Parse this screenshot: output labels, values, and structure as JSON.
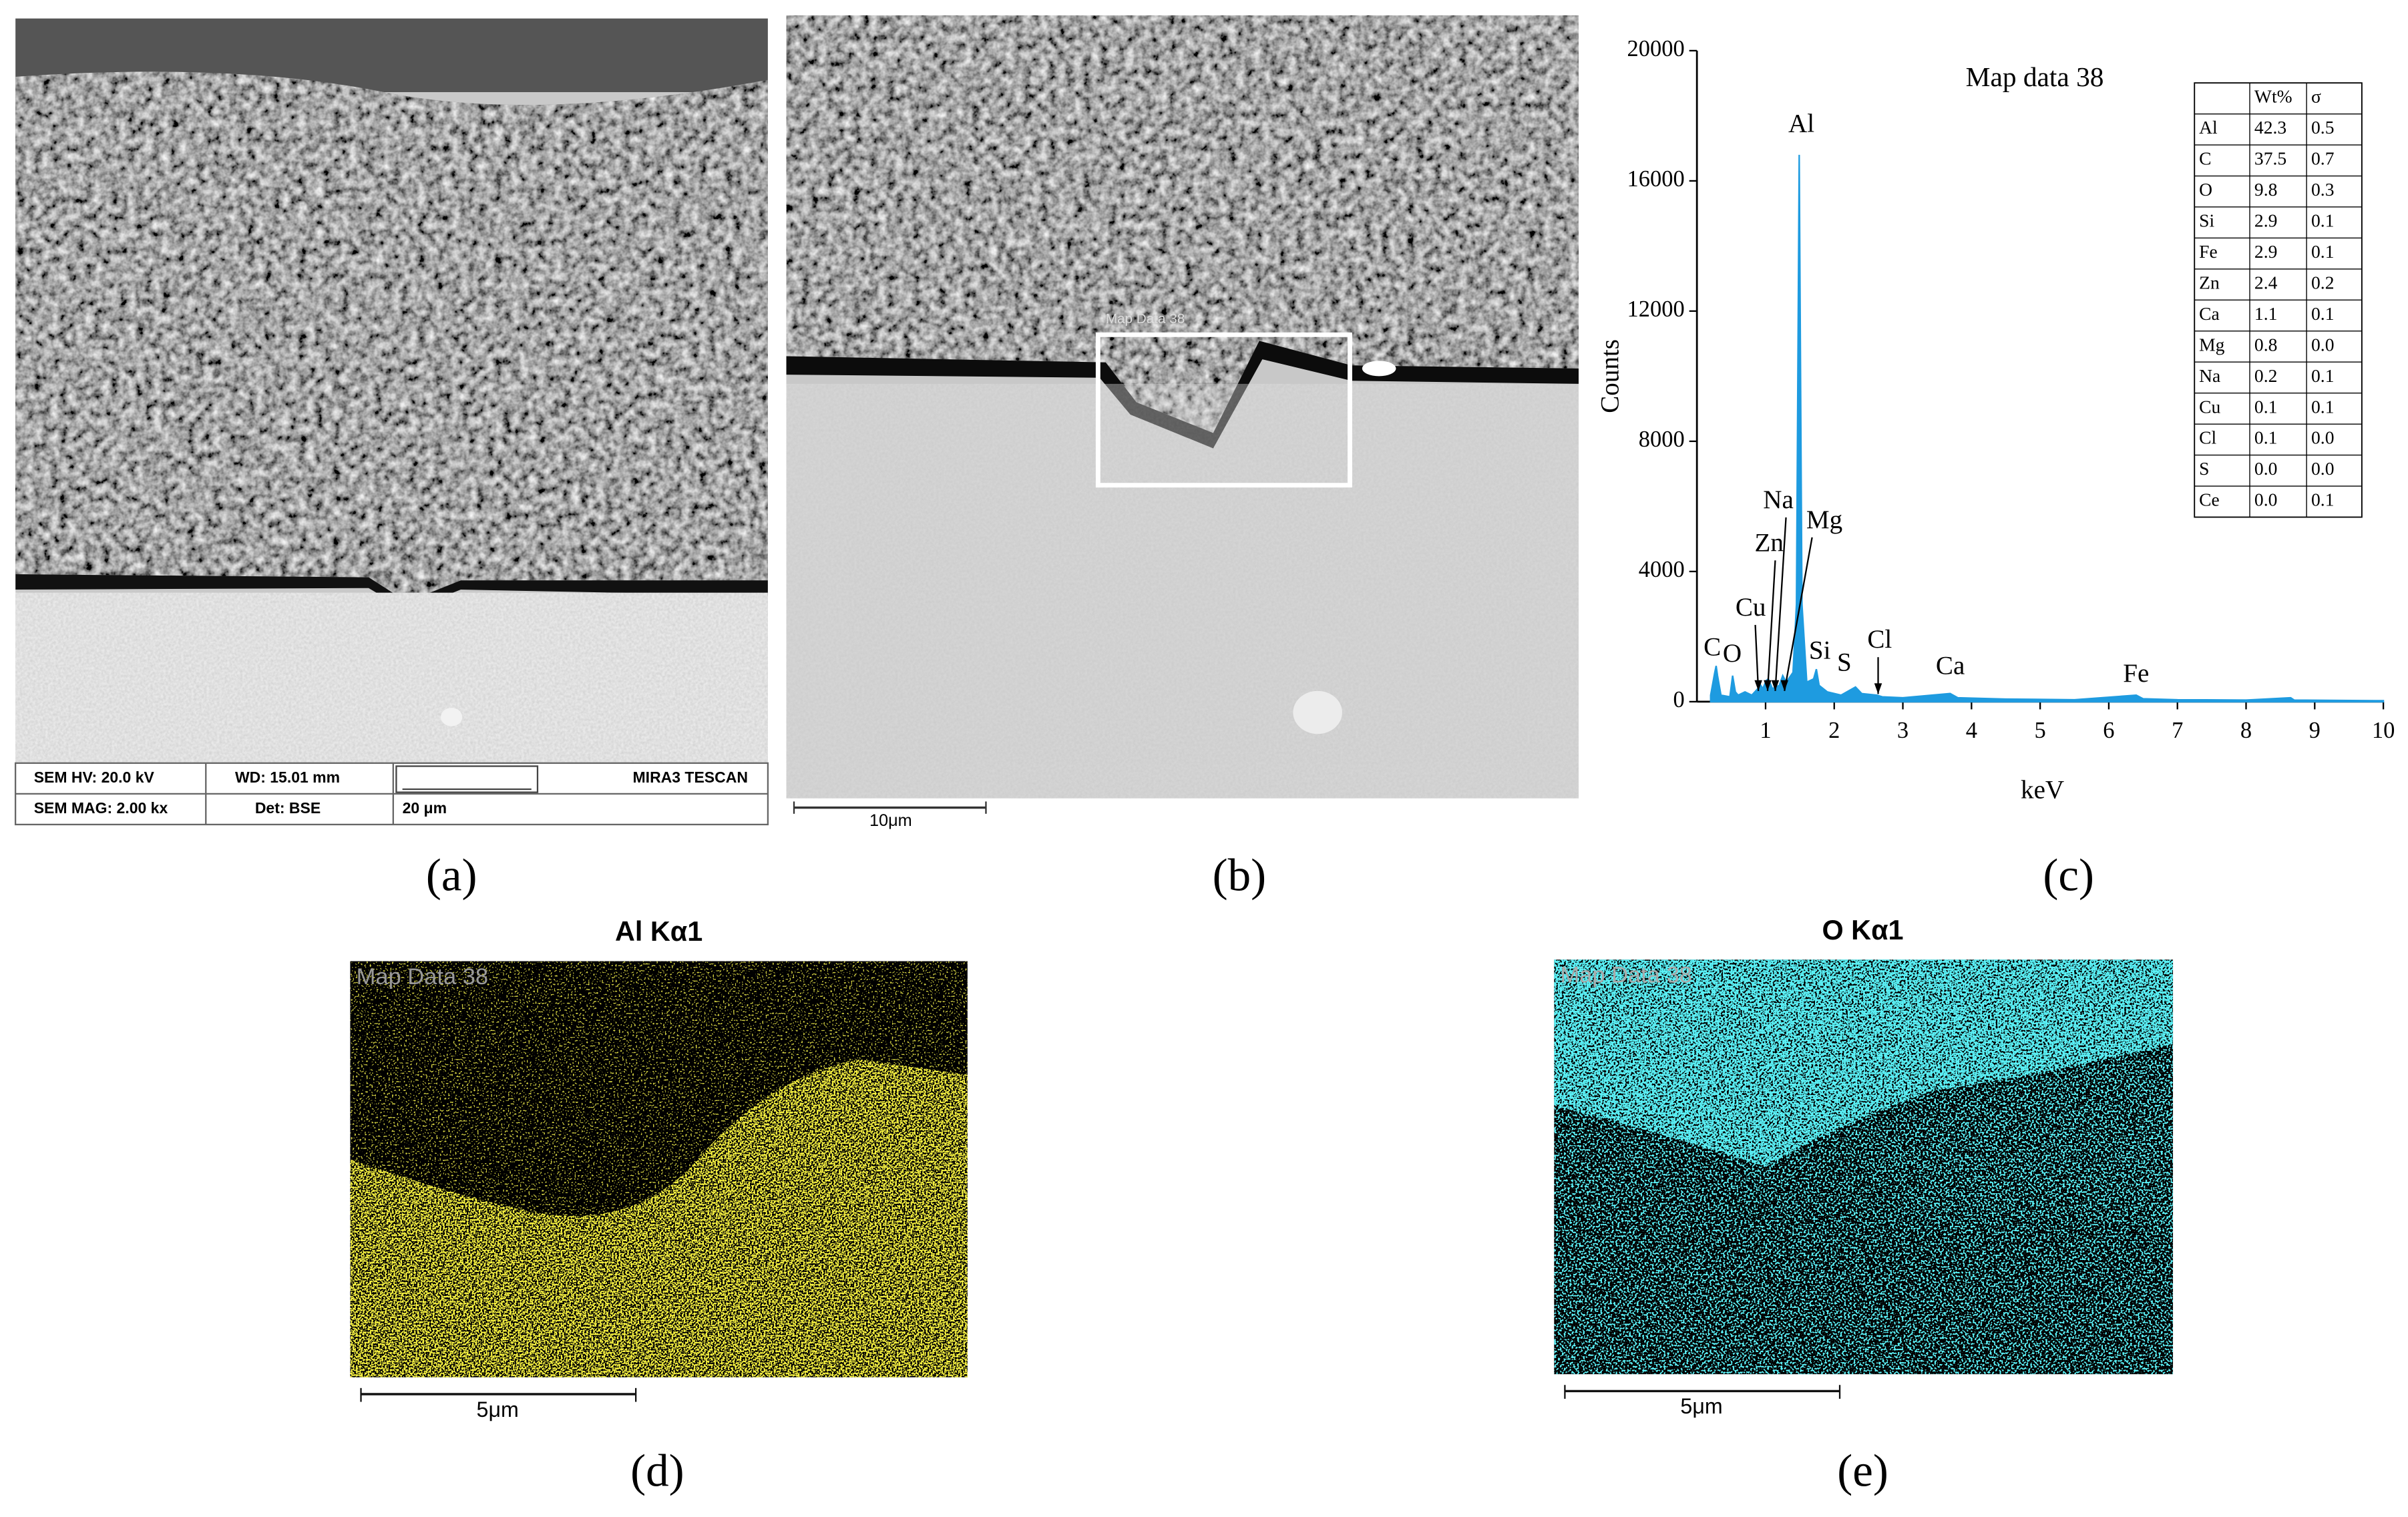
{
  "panel_labels": [
    "(a)",
    "(b)",
    "(c)",
    "(d)",
    "(e)"
  ],
  "sem_a": {
    "info": [
      "SEM HV: 20.0 kV",
      "WD: 15.01 mm",
      "MIRA3 TESCAN",
      "SEM MAG: 2.00 kx",
      "Det: BSE",
      "20 μm"
    ]
  },
  "sem_b": {
    "box_label": "Map Data 38",
    "scale": "10μm"
  },
  "map_d": {
    "title": "Al Kα1",
    "overlay": "Map Data 38",
    "scale": "5μm"
  },
  "map_e": {
    "title": "O Kα1",
    "overlay": "Map Data 38",
    "scale": "5μm"
  },
  "chart_data": {
    "type": "area",
    "title": "Map data 38",
    "x_label": "keV",
    "y_label": "Counts",
    "color": "#1e9be0",
    "xlim": [
      0,
      10
    ],
    "ylim": [
      0,
      20000
    ],
    "xticks": [
      1,
      2,
      3,
      4,
      5,
      6,
      7,
      8,
      9,
      10
    ],
    "yticks": [
      0,
      4000,
      8000,
      12000,
      16000,
      20000
    ],
    "x": [
      0.2,
      0.26,
      0.28,
      0.3,
      0.35,
      0.48,
      0.52,
      0.56,
      0.6,
      0.7,
      0.8,
      0.93,
      0.96,
      1.01,
      1.04,
      1.1,
      1.2,
      1.25,
      1.3,
      1.4,
      1.45,
      1.49,
      1.53,
      1.6,
      1.7,
      1.74,
      1.78,
      1.9,
      2.1,
      2.31,
      2.4,
      2.62,
      2.7,
      3.0,
      3.69,
      3.8,
      4.5,
      5.5,
      6.4,
      6.5,
      7.0,
      8.0,
      8.65,
      8.7,
      10
    ],
    "values": [
      200,
      900,
      1100,
      800,
      200,
      150,
      800,
      300,
      200,
      300,
      200,
      500,
      400,
      650,
      700,
      400,
      500,
      800,
      600,
      900,
      3000,
      16800,
      3000,
      600,
      700,
      1000,
      500,
      300,
      200,
      450,
      250,
      200,
      150,
      120,
      250,
      120,
      80,
      60,
      200,
      90,
      60,
      50,
      120,
      50,
      30
    ],
    "peak_labels": [
      "C",
      "O",
      "Cu",
      "Zn",
      "Na",
      "Mg",
      "Al",
      "Si",
      "S",
      "Cl",
      "Ca",
      "Fe"
    ],
    "table": {
      "header": [
        "Wt%",
        "σ"
      ],
      "rows": [
        [
          "Al",
          "42.3",
          "0.5"
        ],
        [
          "C",
          "37.5",
          "0.7"
        ],
        [
          "O",
          "9.8",
          "0.3"
        ],
        [
          "Si",
          "2.9",
          "0.1"
        ],
        [
          "Fe",
          "2.9",
          "0.1"
        ],
        [
          "Zn",
          "2.4",
          "0.2"
        ],
        [
          "Ca",
          "1.1",
          "0.1"
        ],
        [
          "Mg",
          "0.8",
          "0.0"
        ],
        [
          "Na",
          "0.2",
          "0.1"
        ],
        [
          "Cu",
          "0.1",
          "0.1"
        ],
        [
          "Cl",
          "0.1",
          "0.0"
        ],
        [
          "S",
          "0.0",
          "0.0"
        ],
        [
          "Ce",
          "0.0",
          "0.1"
        ]
      ]
    }
  }
}
